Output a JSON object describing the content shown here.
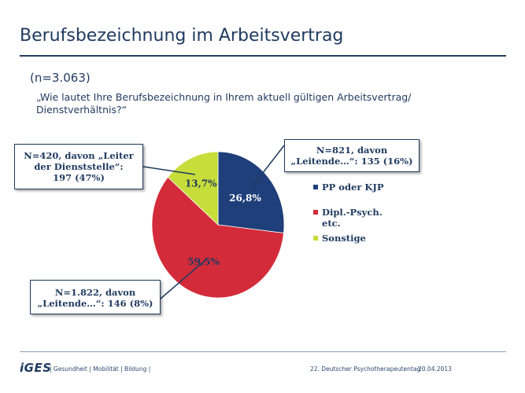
{
  "title": "Berufsbezeichnung im Arbeitsvertrag",
  "sample": "(n=3.063)",
  "question": "„Wie lautet Ihre Berufsbezeichnung in Ihrem aktuell gültigen Arbeitsvertrag/ Dienstverhältnis?“",
  "callouts": [
    {
      "line1": "N=420, davon „Leiter",
      "line2": "der Dienststelle“:",
      "line3": "197 (47%)"
    },
    {
      "line1": "N=821, davon",
      "line2": "„Leitende…“: 135 (16%)"
    },
    {
      "line1": "N=1.822, davon",
      "line2": "„Leitende…“: 146 (8%)"
    }
  ],
  "footer": {
    "logo": "iGES",
    "tagline": "| Gesundheit | Mobilität | Bildung |",
    "event": "22. Deutscher Psychotherapeutentag",
    "date": "20.04.2013"
  },
  "chart_data": {
    "type": "pie",
    "title": "",
    "categories": [
      "PP oder KJP",
      "Dipl.-Psych. etc.",
      "Sonstige"
    ],
    "values": [
      26.8,
      59.5,
      13.7
    ],
    "value_labels": [
      "26,8%",
      "59,5%",
      "13,7%"
    ],
    "colors": [
      "#1f3f7a",
      "#d42b3a",
      "#c6dd3a"
    ],
    "legend_position": "right",
    "legend": [
      {
        "line1": "PP oder KJP",
        "line2": ""
      },
      {
        "line1": "Dipl.-Psych.",
        "line2": "etc."
      },
      {
        "line1": "Sonstige",
        "line2": ""
      }
    ]
  }
}
